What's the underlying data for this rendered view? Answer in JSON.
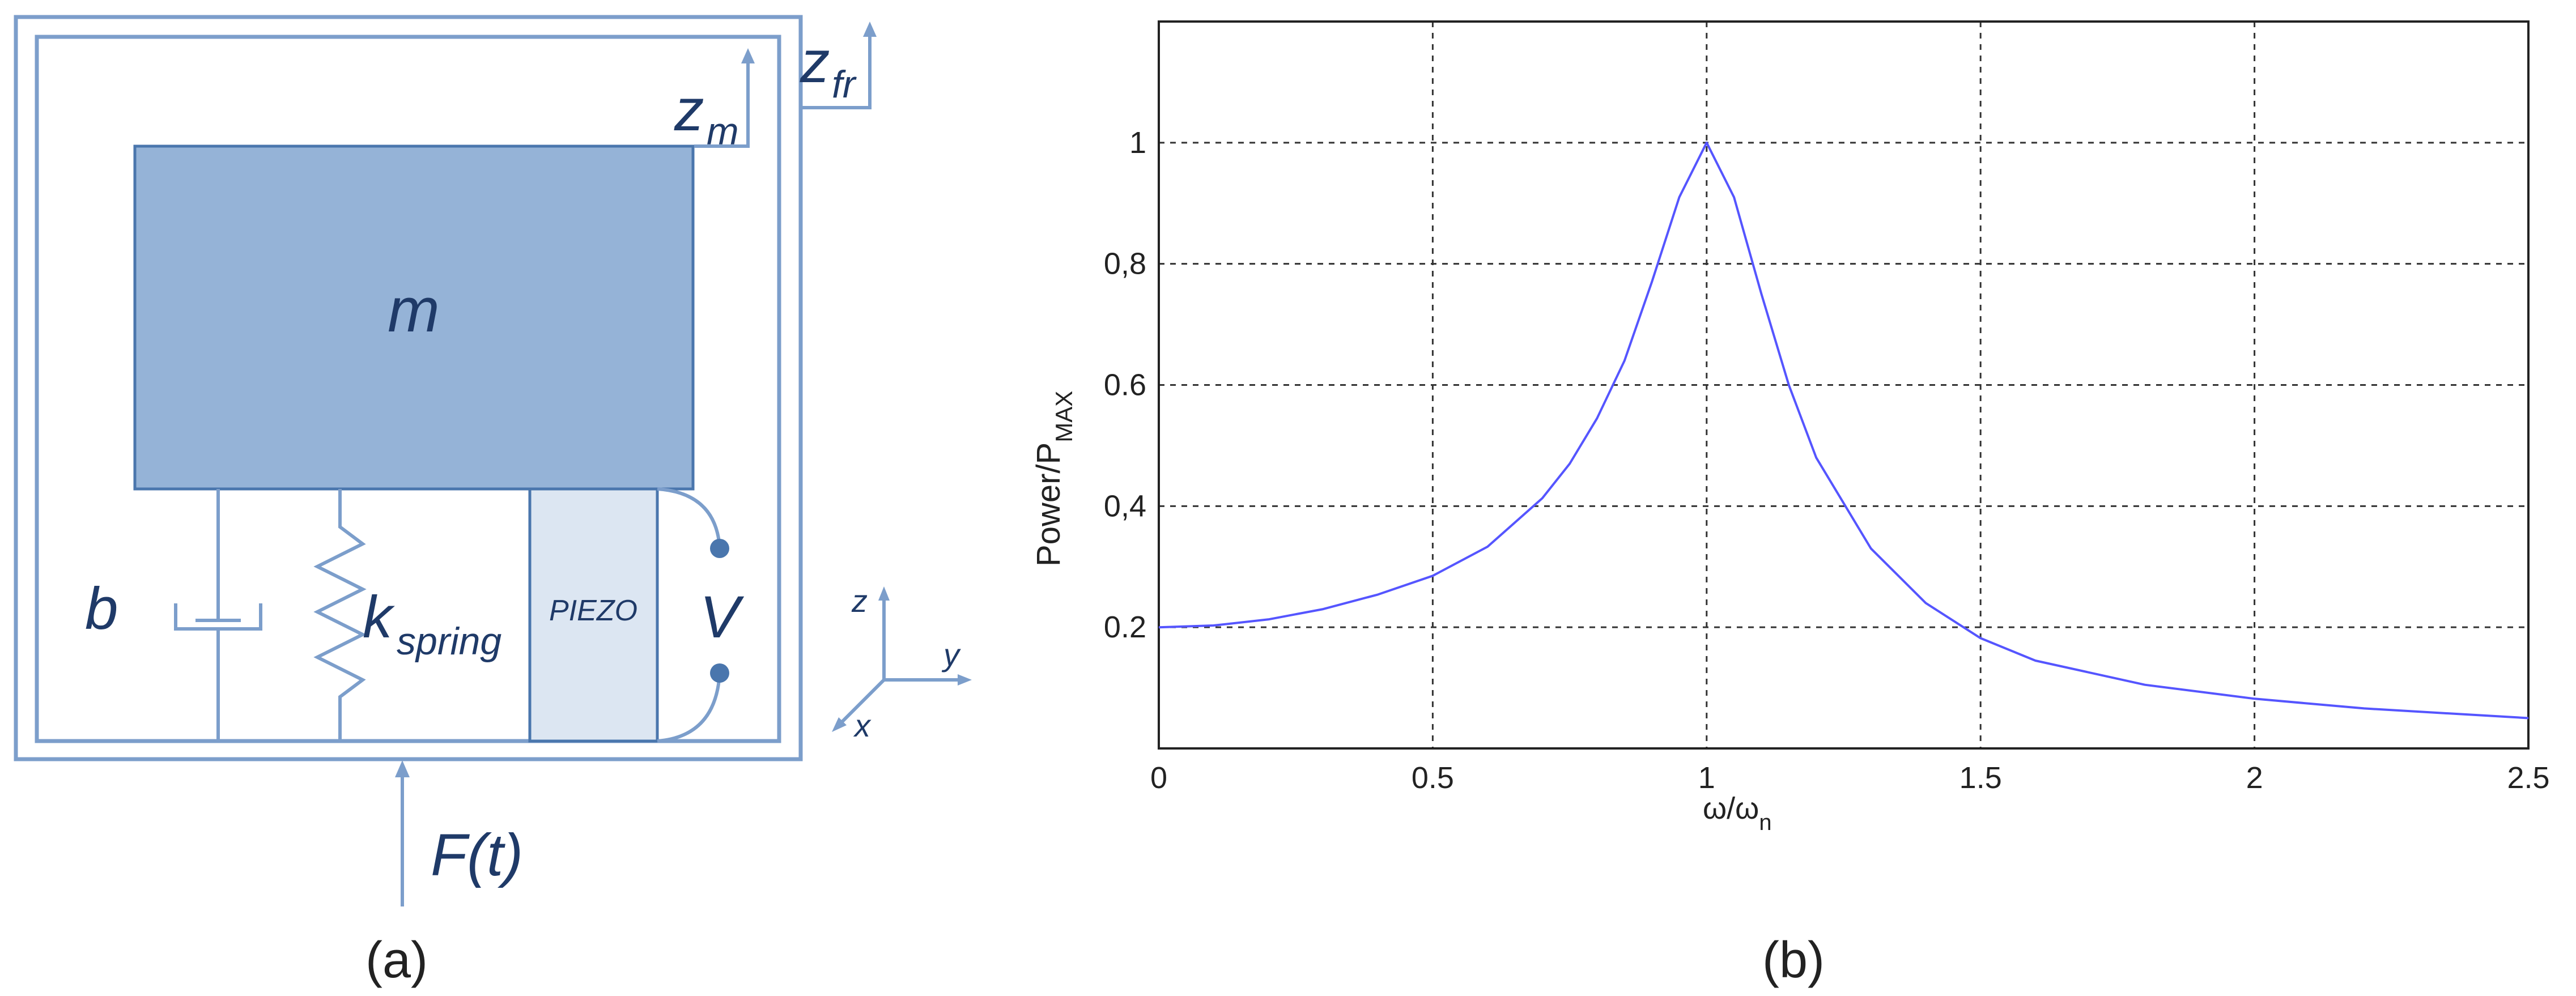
{
  "panel_a": {
    "caption": "(a)",
    "mass_label": "m",
    "damper_label": "b",
    "spring_label": "k",
    "spring_subscript": "spring",
    "piezo_label": "PIEZO",
    "voltage_label": "V",
    "force_label": "F(t)",
    "zm_label": "z",
    "zm_subscript": "m",
    "zfr_label": "z",
    "zfr_subscript": "fr",
    "axis_z": "z",
    "axis_y": "y",
    "axis_x": "x",
    "colors": {
      "mass": "#95b3d7",
      "piezo": "#dce6f2",
      "line": "#7c9ecb",
      "terminal": "#4a76ad",
      "text": "#1f3a68"
    }
  },
  "panel_b": {
    "caption": "(b)",
    "ylabel": "Power/P",
    "ylabel_subscript": "MAX",
    "xlabel": "ω/ω",
    "xlabel_subscript": "n"
  },
  "chart_data": {
    "type": "line",
    "xlim": [
      0,
      2.5
    ],
    "ylim": [
      0,
      1.2
    ],
    "grid": true,
    "x_ticks": [
      0,
      0.5,
      1,
      1.5,
      2,
      2.5
    ],
    "x_tick_labels": [
      "0",
      "0.5",
      "1",
      "1.5",
      "2",
      "2.5"
    ],
    "y_ticks": [
      0.2,
      0.4,
      0.6,
      0.8,
      1
    ],
    "y_tick_labels": [
      "0.2",
      "0,4",
      "0.6",
      "0,8",
      "1"
    ],
    "series": [
      {
        "color": "#5555ff",
        "x": [
          0,
          0.1,
          0.2,
          0.3,
          0.4,
          0.5,
          0.6,
          0.7,
          0.75,
          0.8,
          0.85,
          0.9,
          0.95,
          1.0,
          1.05,
          1.1,
          1.15,
          1.2,
          1.3,
          1.4,
          1.5,
          1.6,
          1.8,
          2.0,
          2.2,
          2.5
        ],
        "y": [
          0.2,
          0.203,
          0.213,
          0.23,
          0.254,
          0.285,
          0.333,
          0.413,
          0.47,
          0.545,
          0.64,
          0.77,
          0.91,
          1.0,
          0.91,
          0.75,
          0.6,
          0.48,
          0.33,
          0.24,
          0.182,
          0.145,
          0.105,
          0.082,
          0.066,
          0.05
        ]
      }
    ]
  }
}
